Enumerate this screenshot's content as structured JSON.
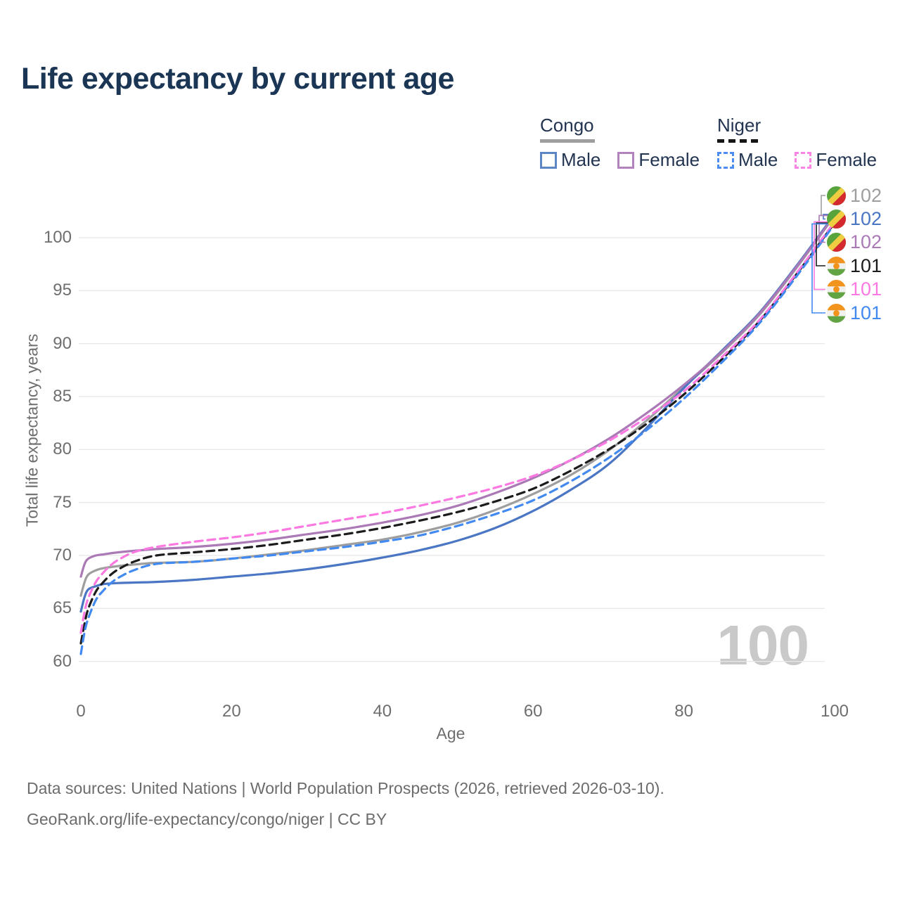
{
  "header": {
    "title": "Life expectancy by current age"
  },
  "legend": {
    "groups": [
      {
        "label": "Congo",
        "line_style": "solid",
        "line_color": "#9e9e9e",
        "items": [
          {
            "label": "Male",
            "color": "#4a76c4",
            "dashed": false
          },
          {
            "label": "Female",
            "color": "#b283bd",
            "dashed": false
          }
        ]
      },
      {
        "label": "Niger",
        "line_style": "dashed",
        "line_color": "#151515",
        "items": [
          {
            "label": "Male",
            "color": "#4e8df2",
            "dashed": true
          },
          {
            "label": "Female",
            "color": "#fb84e4",
            "dashed": true
          }
        ]
      }
    ]
  },
  "watermark": "100",
  "footer": {
    "line1": "Data sources: United Nations | World Population Prospects (2026, retrieved 2026-03-10).",
    "line2": "GeoRank.org/life-expectancy/congo/niger | CC BY"
  },
  "chart_data": {
    "type": "line",
    "title": "Life expectancy by current age",
    "xlabel": "Age",
    "ylabel": "Total life expectancy, years",
    "xlim": [
      0,
      100
    ],
    "ylim": [
      60,
      103
    ],
    "xticks": [
      0,
      20,
      40,
      60,
      80,
      100
    ],
    "yticks": [
      60,
      65,
      70,
      75,
      80,
      85,
      90,
      95,
      100
    ],
    "grid": "horizontal",
    "grid_color": "#e8e8e8",
    "legend_position": "top-right",
    "series": [
      {
        "id": "congo",
        "name": "Congo (both sexes)",
        "country": "Congo",
        "sex": "Both",
        "line_style": "solid",
        "color": "#9e9e9e",
        "flag": "congo",
        "end_label": "102",
        "label_slot": 0,
        "points": [
          [
            0,
            66.2
          ],
          [
            0.5,
            67.5
          ],
          [
            1,
            68.2
          ],
          [
            2,
            68.6
          ],
          [
            3,
            68.8
          ],
          [
            5,
            69.0
          ],
          [
            8,
            69.2
          ],
          [
            10,
            69.3
          ],
          [
            15,
            69.4
          ],
          [
            20,
            69.7
          ],
          [
            25,
            70.1
          ],
          [
            30,
            70.5
          ],
          [
            35,
            71.0
          ],
          [
            40,
            71.5
          ],
          [
            45,
            72.2
          ],
          [
            50,
            73.1
          ],
          [
            55,
            74.3
          ],
          [
            60,
            75.8
          ],
          [
            65,
            77.6
          ],
          [
            70,
            79.9
          ],
          [
            75,
            82.7
          ],
          [
            80,
            85.9
          ],
          [
            85,
            89.1
          ],
          [
            90,
            92.7
          ],
          [
            95,
            97.2
          ],
          [
            100,
            102.1
          ]
        ]
      },
      {
        "id": "congo-male",
        "name": "Congo Male",
        "country": "Congo",
        "sex": "Male",
        "line_style": "solid",
        "color": "#4a76c4",
        "flag": "congo",
        "end_label": "102",
        "label_slot": 1,
        "points": [
          [
            0,
            64.7
          ],
          [
            0.5,
            66.1
          ],
          [
            1,
            66.8
          ],
          [
            2,
            67.1
          ],
          [
            3,
            67.3
          ],
          [
            5,
            67.4
          ],
          [
            10,
            67.5
          ],
          [
            15,
            67.7
          ],
          [
            20,
            68.0
          ],
          [
            25,
            68.3
          ],
          [
            30,
            68.7
          ],
          [
            35,
            69.2
          ],
          [
            40,
            69.8
          ],
          [
            45,
            70.5
          ],
          [
            50,
            71.4
          ],
          [
            55,
            72.6
          ],
          [
            60,
            74.2
          ],
          [
            65,
            76.2
          ],
          [
            70,
            78.6
          ],
          [
            75,
            82.0
          ],
          [
            80,
            85.8
          ],
          [
            85,
            89.3
          ],
          [
            90,
            92.9
          ],
          [
            95,
            97.4
          ],
          [
            100,
            102.2
          ]
        ]
      },
      {
        "id": "congo-female",
        "name": "Congo Female",
        "country": "Congo",
        "sex": "Female",
        "line_style": "solid",
        "color": "#ab7ab6",
        "flag": "congo",
        "end_label": "102",
        "label_slot": 2,
        "points": [
          [
            0,
            68.0
          ],
          [
            0.5,
            69.2
          ],
          [
            1,
            69.7
          ],
          [
            2,
            70.0
          ],
          [
            3,
            70.1
          ],
          [
            5,
            70.3
          ],
          [
            10,
            70.6
          ],
          [
            15,
            70.8
          ],
          [
            20,
            71.1
          ],
          [
            25,
            71.5
          ],
          [
            30,
            72.0
          ],
          [
            35,
            72.5
          ],
          [
            40,
            73.1
          ],
          [
            45,
            73.8
          ],
          [
            50,
            74.7
          ],
          [
            55,
            75.9
          ],
          [
            60,
            77.3
          ],
          [
            65,
            79.0
          ],
          [
            70,
            81.0
          ],
          [
            75,
            83.4
          ],
          [
            80,
            86.1
          ],
          [
            85,
            89.2
          ],
          [
            90,
            92.8
          ],
          [
            95,
            97.3
          ],
          [
            100,
            102.1
          ]
        ]
      },
      {
        "id": "niger",
        "name": "Niger (both sexes)",
        "country": "Niger",
        "sex": "Both",
        "line_style": "dashed",
        "color": "#1c1c1c",
        "flag": "niger",
        "end_label": "101",
        "label_slot": 3,
        "points": [
          [
            0,
            61.7
          ],
          [
            0.5,
            63.6
          ],
          [
            1,
            65.0
          ],
          [
            2,
            66.6
          ],
          [
            3,
            67.5
          ],
          [
            4,
            68.2
          ],
          [
            5,
            68.7
          ],
          [
            7,
            69.4
          ],
          [
            10,
            70.0
          ],
          [
            15,
            70.3
          ],
          [
            20,
            70.6
          ],
          [
            25,
            71.0
          ],
          [
            30,
            71.5
          ],
          [
            35,
            72.0
          ],
          [
            40,
            72.6
          ],
          [
            45,
            73.3
          ],
          [
            50,
            74.1
          ],
          [
            55,
            75.1
          ],
          [
            60,
            76.3
          ],
          [
            65,
            78.0
          ],
          [
            70,
            80.0
          ],
          [
            75,
            82.4
          ],
          [
            80,
            85.2
          ],
          [
            85,
            88.5
          ],
          [
            90,
            92.1
          ],
          [
            95,
            96.6
          ],
          [
            100,
            101.4
          ]
        ]
      },
      {
        "id": "niger-female",
        "name": "Niger Female",
        "country": "Niger",
        "sex": "Female",
        "line_style": "dashed",
        "color": "#fb79e1",
        "flag": "niger",
        "end_label": "101",
        "label_slot": 4,
        "points": [
          [
            0,
            62.7
          ],
          [
            0.5,
            64.7
          ],
          [
            1,
            66.0
          ],
          [
            2,
            67.5
          ],
          [
            3,
            68.4
          ],
          [
            4,
            69.1
          ],
          [
            5,
            69.6
          ],
          [
            7,
            70.3
          ],
          [
            10,
            70.8
          ],
          [
            15,
            71.3
          ],
          [
            20,
            71.7
          ],
          [
            25,
            72.2
          ],
          [
            30,
            72.8
          ],
          [
            35,
            73.4
          ],
          [
            40,
            74.0
          ],
          [
            45,
            74.7
          ],
          [
            50,
            75.5
          ],
          [
            55,
            76.4
          ],
          [
            60,
            77.5
          ],
          [
            65,
            79.0
          ],
          [
            70,
            80.8
          ],
          [
            75,
            83.0
          ],
          [
            80,
            85.5
          ],
          [
            85,
            88.7
          ],
          [
            90,
            92.2
          ],
          [
            95,
            96.7
          ],
          [
            100,
            101.5
          ]
        ]
      },
      {
        "id": "niger-male",
        "name": "Niger Male",
        "country": "Niger",
        "sex": "Male",
        "line_style": "dashed",
        "color": "#4289f0",
        "flag": "niger",
        "end_label": "101",
        "label_slot": 5,
        "points": [
          [
            0,
            60.7
          ],
          [
            0.5,
            62.8
          ],
          [
            1,
            64.1
          ],
          [
            2,
            65.8
          ],
          [
            3,
            66.7
          ],
          [
            4,
            67.4
          ],
          [
            5,
            67.9
          ],
          [
            7,
            68.6
          ],
          [
            10,
            69.2
          ],
          [
            15,
            69.4
          ],
          [
            20,
            69.7
          ],
          [
            25,
            70.0
          ],
          [
            30,
            70.4
          ],
          [
            35,
            70.8
          ],
          [
            40,
            71.3
          ],
          [
            45,
            71.9
          ],
          [
            50,
            72.8
          ],
          [
            55,
            73.9
          ],
          [
            60,
            75.2
          ],
          [
            65,
            77.0
          ],
          [
            70,
            79.2
          ],
          [
            75,
            81.8
          ],
          [
            80,
            84.8
          ],
          [
            85,
            88.2
          ],
          [
            90,
            91.9
          ],
          [
            95,
            96.4
          ],
          [
            100,
            101.3
          ]
        ]
      }
    ]
  }
}
